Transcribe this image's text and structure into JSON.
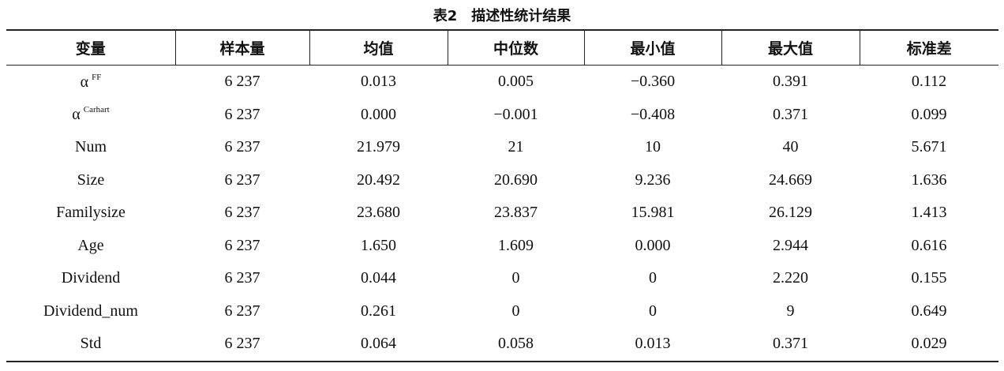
{
  "caption": "表2　描述性统计结果",
  "table": {
    "header": [
      "变量",
      "样本量",
      "均值",
      "中位数",
      "最小值",
      "最大值",
      "标准差"
    ],
    "rows": [
      [
        {
          "text": "α",
          "sup": "FF"
        },
        "6 237",
        "0.013",
        "0.005",
        "−0.360",
        "0.391",
        "0.112"
      ],
      [
        {
          "text": "α",
          "sup": "Carhart"
        },
        "6 237",
        "0.000",
        "−0.001",
        "−0.408",
        "0.371",
        "0.099"
      ],
      [
        "Num",
        "6 237",
        "21.979",
        "21",
        "10",
        "40",
        "5.671"
      ],
      [
        "Size",
        "6 237",
        "20.492",
        "20.690",
        "9.236",
        "24.669",
        "1.636"
      ],
      [
        "Familysize",
        "6 237",
        "23.680",
        "23.837",
        "15.981",
        "26.129",
        "1.413"
      ],
      [
        "Age",
        "6 237",
        "1.650",
        "1.609",
        "0.000",
        "2.944",
        "0.616"
      ],
      [
        "Dividend",
        "6 237",
        "0.044",
        "0",
        "0",
        "2.220",
        "0.155"
      ],
      [
        "Dividend_num",
        "6 237",
        "0.261",
        "0",
        "0",
        "9",
        "0.649"
      ],
      [
        "Std",
        "6 237",
        "0.064",
        "0.058",
        "0.013",
        "0.371",
        "0.029"
      ]
    ]
  }
}
